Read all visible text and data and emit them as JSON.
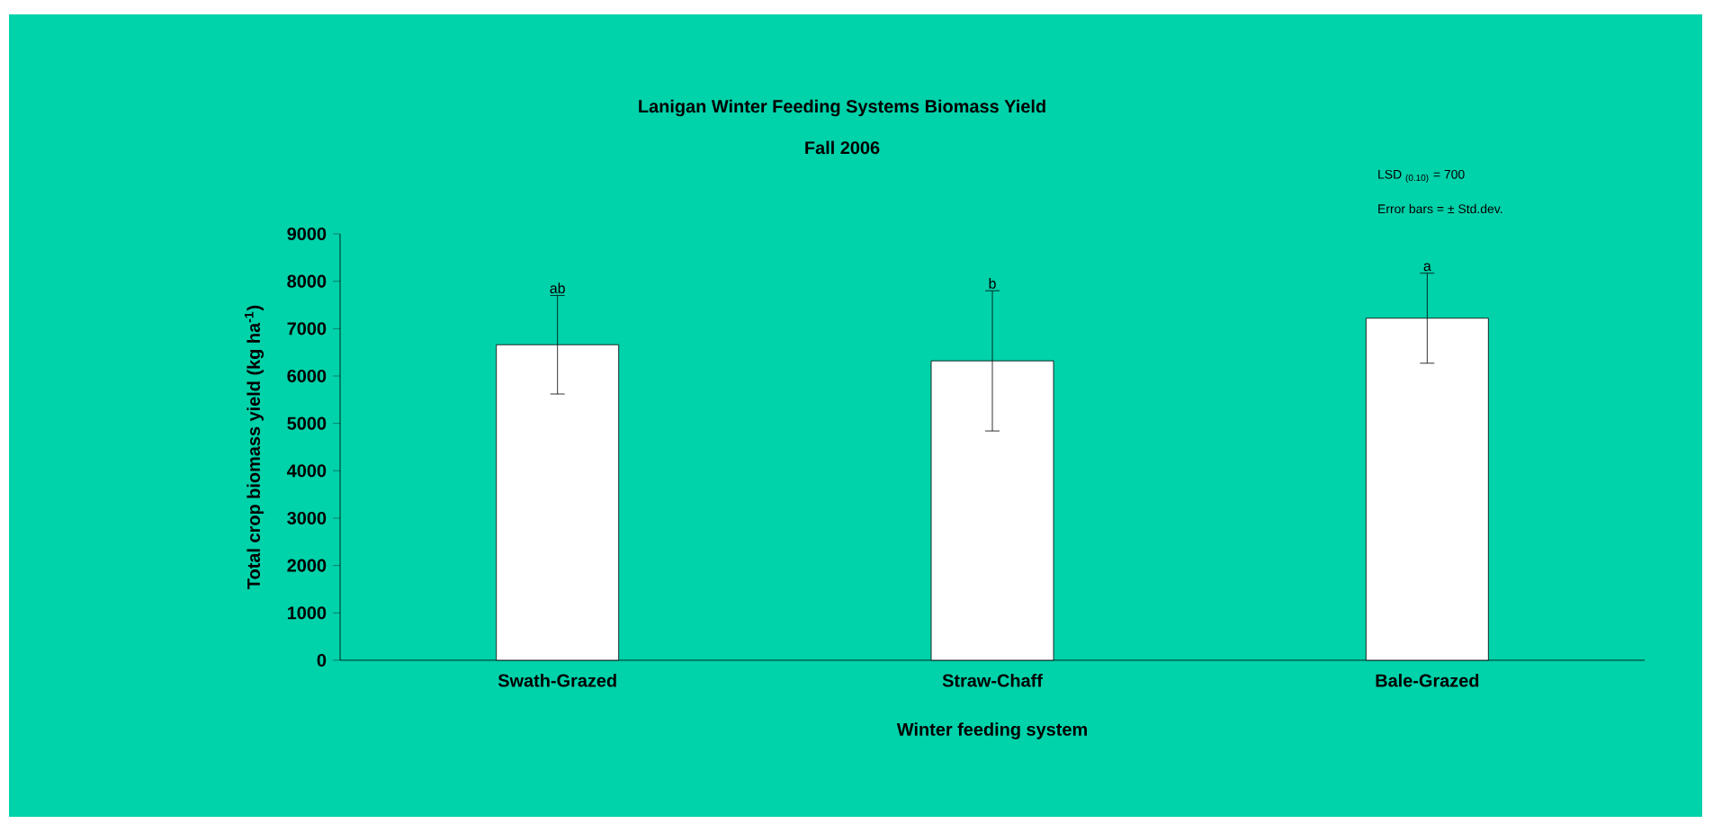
{
  "chart_data": {
    "type": "bar",
    "title": "Lanigan Winter Feeding Systems Biomass Yield",
    "subtitle": "Fall 2006",
    "xlabel": "Winter feeding system",
    "ylabel": "Total crop biomass yield (kg ha$^{-1}$)",
    "categories": [
      "Swath-Grazed",
      "Straw-Chaff",
      "Bale-Grazed"
    ],
    "values": [
      6660,
      6320,
      7220
    ],
    "errors": [
      1040,
      1480,
      950
    ],
    "color": "#ffffff",
    "ylim": [
      0,
      9000
    ],
    "yticks": [
      0,
      1000,
      2000,
      3000,
      4000,
      5000,
      6000,
      7000,
      8000,
      9000
    ],
    "grid": false,
    "annotations": [
      "ab",
      "b",
      "a",
      "LSD $_{(0.10)}$ = 700",
      "Error bars =  ± Std.dev."
    ]
  }
}
